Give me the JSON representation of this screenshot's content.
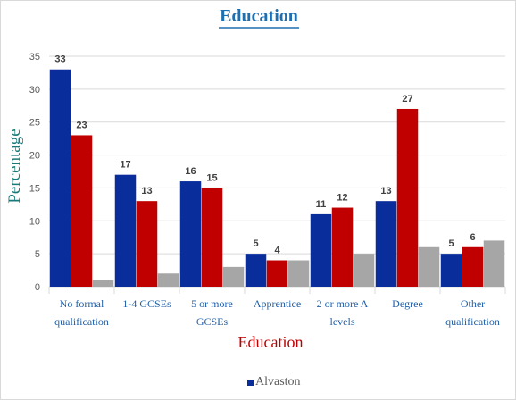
{
  "chart_data": {
    "type": "bar",
    "title": "Education",
    "xlabel": "Education",
    "ylabel": "Percentage",
    "ylim": [
      0,
      35
    ],
    "yticks": [
      0,
      5,
      10,
      15,
      20,
      25,
      30,
      35
    ],
    "grid": true,
    "legend_position": "bottom",
    "categories": [
      [
        "No formal",
        "qualification"
      ],
      [
        "1-4 GCSEs"
      ],
      [
        "5 or more",
        "GCSEs"
      ],
      [
        "Apprentice"
      ],
      [
        "2 or more A",
        "levels"
      ],
      [
        "Degree"
      ],
      [
        "Other",
        "qualification"
      ]
    ],
    "series": [
      {
        "name": "Alvaston",
        "color": "#0a2d9c",
        "values": [
          33,
          17,
          16,
          5,
          11,
          13,
          5
        ],
        "labels": true
      },
      {
        "color": "#c00000",
        "values": [
          23,
          13,
          15,
          4,
          12,
          27,
          6
        ],
        "labels": true
      },
      {
        "color": "#a6a6a6",
        "values": [
          1,
          2,
          3,
          4,
          5,
          6,
          7
        ],
        "labels": false
      }
    ],
    "colors": {
      "title": "#1f6faf",
      "category_text": "#1f5fa8",
      "xlabel": "#c00000",
      "ylabel": "#1a7a7a",
      "data_label": "#404040",
      "axis_text": "#595959",
      "grid": "#d9d9d9"
    }
  }
}
